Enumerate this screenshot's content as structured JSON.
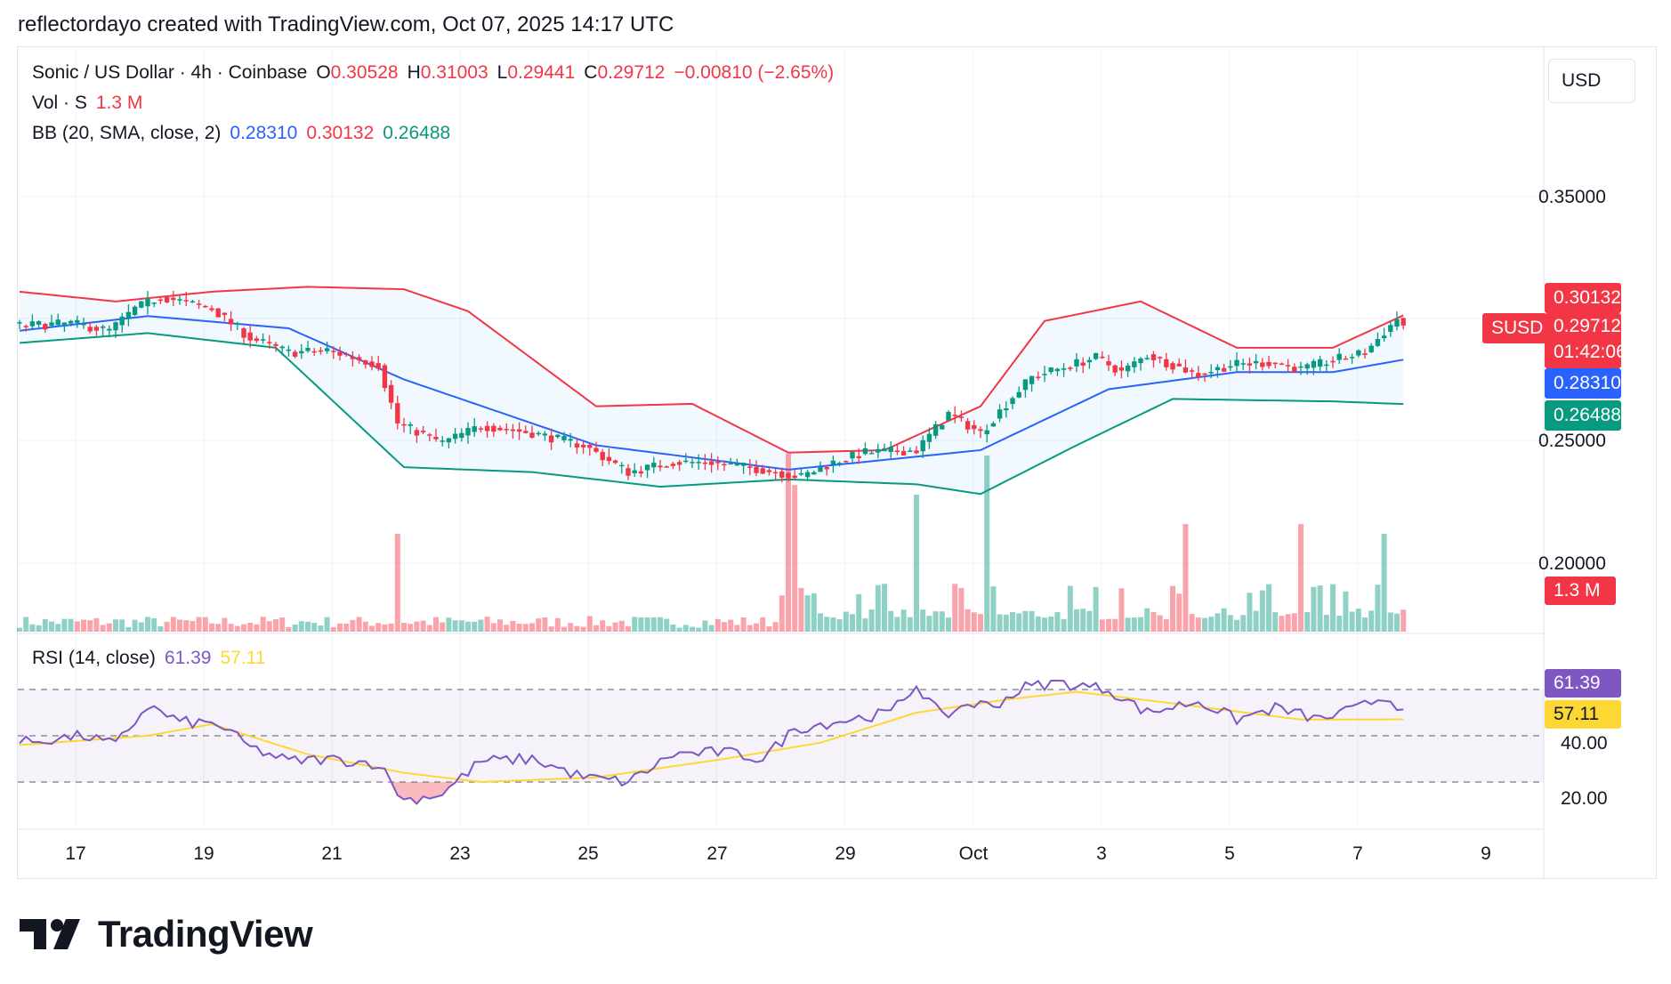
{
  "header": {
    "caption": "reflectordayo created with TradingView.com, Oct 07, 2025 14:17 UTC"
  },
  "legend": {
    "symbol": "Sonic / US Dollar · 4h · Coinbase",
    "o_label": "O",
    "o_value": "0.30528",
    "h_label": "H",
    "h_value": "0.31003",
    "l_label": "L",
    "l_value": "0.29441",
    "c_label": "C",
    "c_value": "0.29712",
    "change": "−0.00810 (−2.65%)",
    "vol_label": "Vol · S",
    "vol_value": "1.3 M",
    "bb_label": "BB (20, SMA, close, 2)",
    "bb_basis": "0.28310",
    "bb_upper": "0.30132",
    "bb_lower": "0.26488",
    "rsi_label": "RSI (14, close)",
    "rsi_value": "61.39",
    "rsi_ma": "57.11"
  },
  "currency_button": "USD",
  "price_axis_ticks": [
    "0.35000",
    "0.25000",
    "0.20000"
  ],
  "rsi_axis_ticks": [
    "40.00",
    "20.00"
  ],
  "tags": {
    "upper": "0.30132",
    "symbol": "SUSD",
    "last": "0.29712",
    "countdown": "01:42:06",
    "basis": "0.28310",
    "lower": "0.26488",
    "volume": "1.3 M",
    "rsi": "61.39",
    "rsi_ma": "57.11"
  },
  "x_axis_labels": [
    "17",
    "19",
    "21",
    "23",
    "25",
    "27",
    "29",
    "Oct",
    "3",
    "5",
    "7",
    "9"
  ],
  "brand": "TradingView",
  "colors": {
    "up": "#089981",
    "down": "#f23645",
    "bb_basis": "#2962ff",
    "bb_upper": "#f23645",
    "bb_lower": "#089981",
    "rsi": "#7e57c2",
    "rsi_ma": "#fdd835"
  },
  "chart_data": [
    {
      "type": "candlestick",
      "title": "Sonic / US Dollar · 4h · Coinbase",
      "x_range": [
        "Sep 16",
        "Oct 9"
      ],
      "price_range": [
        0.19,
        0.37
      ],
      "grid": true,
      "overlays": [
        "Bollinger Bands (20, SMA, close, 2)"
      ],
      "series": [
        {
          "name": "close",
          "anchors": [
            [
              0,
              0.297
            ],
            [
              8,
              0.298
            ],
            [
              14,
              0.295
            ],
            [
              18,
              0.304
            ],
            [
              22,
              0.309
            ],
            [
              30,
              0.304
            ],
            [
              36,
              0.292
            ],
            [
              42,
              0.286
            ],
            [
              48,
              0.287
            ],
            [
              56,
              0.281
            ],
            [
              59,
              0.257
            ],
            [
              66,
              0.249
            ],
            [
              72,
              0.256
            ],
            [
              80,
              0.253
            ],
            [
              88,
              0.248
            ],
            [
              95,
              0.237
            ],
            [
              102,
              0.241
            ],
            [
              108,
              0.241
            ],
            [
              116,
              0.238
            ],
            [
              122,
              0.235
            ],
            [
              127,
              0.241
            ],
            [
              132,
              0.245
            ],
            [
              140,
              0.246
            ],
            [
              145,
              0.261
            ],
            [
              150,
              0.253
            ],
            [
              155,
              0.268
            ],
            [
              158,
              0.276
            ],
            [
              168,
              0.284
            ],
            [
              172,
              0.278
            ],
            [
              176,
              0.285
            ],
            [
              184,
              0.277
            ],
            [
              189,
              0.281
            ],
            [
              196,
              0.282
            ],
            [
              200,
              0.279
            ],
            [
              205,
              0.283
            ],
            [
              210,
              0.286
            ],
            [
              215,
              0.3
            ],
            [
              216,
              0.297
            ]
          ]
        },
        {
          "name": "Basis",
          "anchors": [
            [
              0,
              0.295
            ],
            [
              20,
              0.301
            ],
            [
              42,
              0.296
            ],
            [
              60,
              0.275
            ],
            [
              90,
              0.248
            ],
            [
              120,
              0.238
            ],
            [
              150,
              0.246
            ],
            [
              170,
              0.271
            ],
            [
              190,
              0.278
            ],
            [
              205,
              0.278
            ],
            [
              216,
              0.2831
            ]
          ]
        },
        {
          "name": "Upper",
          "anchors": [
            [
              0,
              0.311
            ],
            [
              15,
              0.307
            ],
            [
              30,
              0.311
            ],
            [
              45,
              0.313
            ],
            [
              60,
              0.312
            ],
            [
              70,
              0.303
            ],
            [
              90,
              0.264
            ],
            [
              105,
              0.265
            ],
            [
              120,
              0.245
            ],
            [
              135,
              0.246
            ],
            [
              150,
              0.264
            ],
            [
              160,
              0.299
            ],
            [
              175,
              0.307
            ],
            [
              190,
              0.288
            ],
            [
              205,
              0.288
            ],
            [
              216,
              0.3013
            ]
          ]
        },
        {
          "name": "Lower",
          "anchors": [
            [
              0,
              0.29
            ],
            [
              20,
              0.294
            ],
            [
              40,
              0.288
            ],
            [
              60,
              0.239
            ],
            [
              80,
              0.237
            ],
            [
              100,
              0.231
            ],
            [
              120,
              0.234
            ],
            [
              140,
              0.232
            ],
            [
              150,
              0.228
            ],
            [
              165,
              0.248
            ],
            [
              180,
              0.267
            ],
            [
              205,
              0.266
            ],
            [
              216,
              0.2649
            ]
          ]
        }
      ]
    },
    {
      "type": "bar",
      "title": "Vol · S",
      "latest": "1.3 M",
      "spikes": [
        [
          59,
          1.0
        ],
        [
          120,
          1.9
        ],
        [
          121,
          1.5
        ],
        [
          140,
          1.4
        ],
        [
          151,
          1.8
        ],
        [
          182,
          1.1
        ],
        [
          200,
          1.1
        ],
        [
          213,
          1.0
        ]
      ]
    },
    {
      "type": "line",
      "title": "RSI (14, close)",
      "y_range": [
        10,
        80
      ],
      "bands": [
        30,
        50,
        70
      ],
      "series": [
        {
          "name": "RSI",
          "anchors": [
            [
              0,
              47
            ],
            [
              10,
              50
            ],
            [
              15,
              46
            ],
            [
              20,
              63
            ],
            [
              25,
              56
            ],
            [
              31,
              55
            ],
            [
              36,
              45
            ],
            [
              42,
              39
            ],
            [
              48,
              40
            ],
            [
              56,
              38
            ],
            [
              60,
              22
            ],
            [
              66,
              25
            ],
            [
              72,
              39
            ],
            [
              80,
              40
            ],
            [
              88,
              32
            ],
            [
              95,
              30
            ],
            [
              102,
              42
            ],
            [
              110,
              43
            ],
            [
              116,
              40
            ],
            [
              121,
              53
            ],
            [
              125,
              55
            ],
            [
              136,
              60
            ],
            [
              140,
              72
            ],
            [
              144,
              58
            ],
            [
              148,
              64
            ],
            [
              152,
              63
            ],
            [
              157,
              71
            ],
            [
              162,
              73
            ],
            [
              170,
              70
            ],
            [
              176,
              60
            ],
            [
              184,
              65
            ],
            [
              190,
              57
            ],
            [
              196,
              62
            ],
            [
              203,
              57
            ],
            [
              209,
              62
            ],
            [
              213,
              67
            ],
            [
              216,
              61.39
            ]
          ]
        },
        {
          "name": "MA",
          "anchors": [
            [
              0,
              46
            ],
            [
              20,
              50
            ],
            [
              30,
              55
            ],
            [
              45,
              42
            ],
            [
              60,
              34
            ],
            [
              72,
              30
            ],
            [
              90,
              32
            ],
            [
              110,
              40
            ],
            [
              125,
              47
            ],
            [
              140,
              60
            ],
            [
              155,
              66
            ],
            [
              165,
              69
            ],
            [
              180,
              64
            ],
            [
              200,
              57
            ],
            [
              216,
              57.11
            ]
          ]
        }
      ]
    }
  ]
}
